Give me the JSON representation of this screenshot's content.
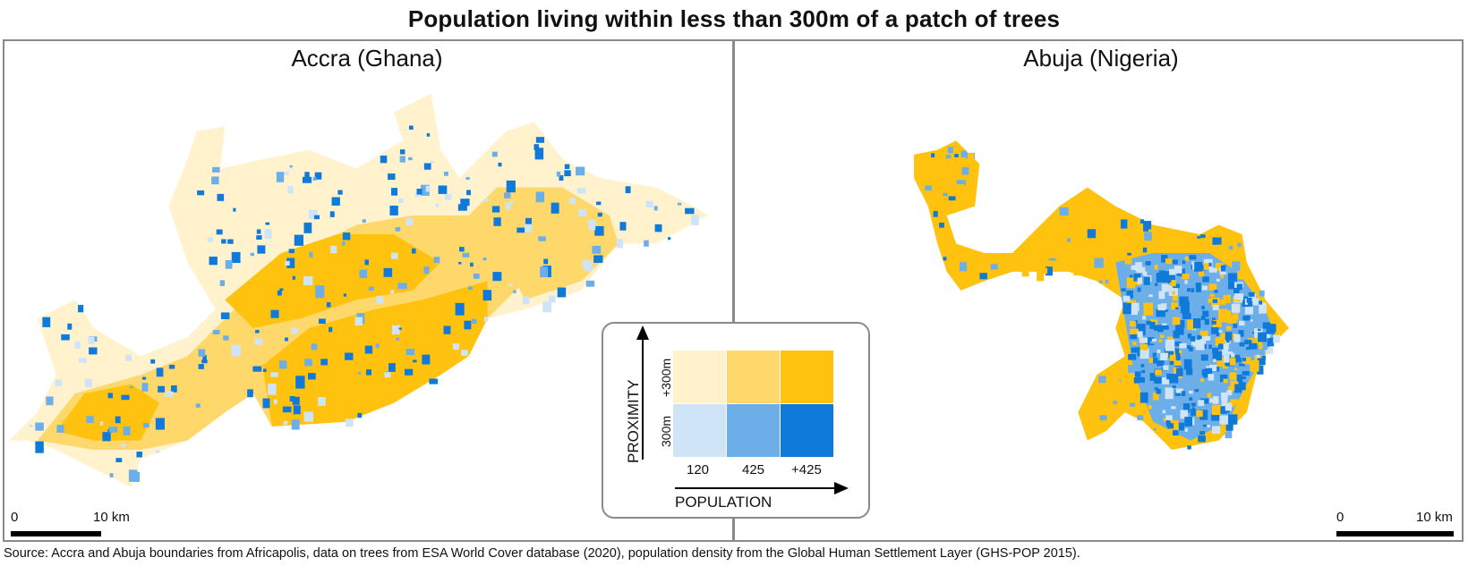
{
  "title": "Population living within less than 300m of a patch of trees",
  "maps": [
    {
      "name": "Accra (Ghana)",
      "scale_start": "0",
      "scale_end": "10 km"
    },
    {
      "name": "Abuja (Nigeria)",
      "scale_start": "0",
      "scale_end": "10 km"
    }
  ],
  "legend": {
    "y_axis_label": "PROXIMITY",
    "x_axis_label": "POPULATION",
    "row_labels": [
      "+300m",
      "300m"
    ],
    "column_labels": [
      "120",
      "425",
      "+425"
    ],
    "colors": {
      "far": [
        "#FFF2CC",
        "#FFD86B",
        "#FFC20E"
      ],
      "near": [
        "#CFE4F7",
        "#6CAEE8",
        "#0F7AD9"
      ]
    }
  },
  "source": "Source: Accra and Abuja boundaries from Africapolis, data on trees from ESA World Cover database (2020), population density from the Global Human Settlement Layer (GHS-POP 2015)."
}
